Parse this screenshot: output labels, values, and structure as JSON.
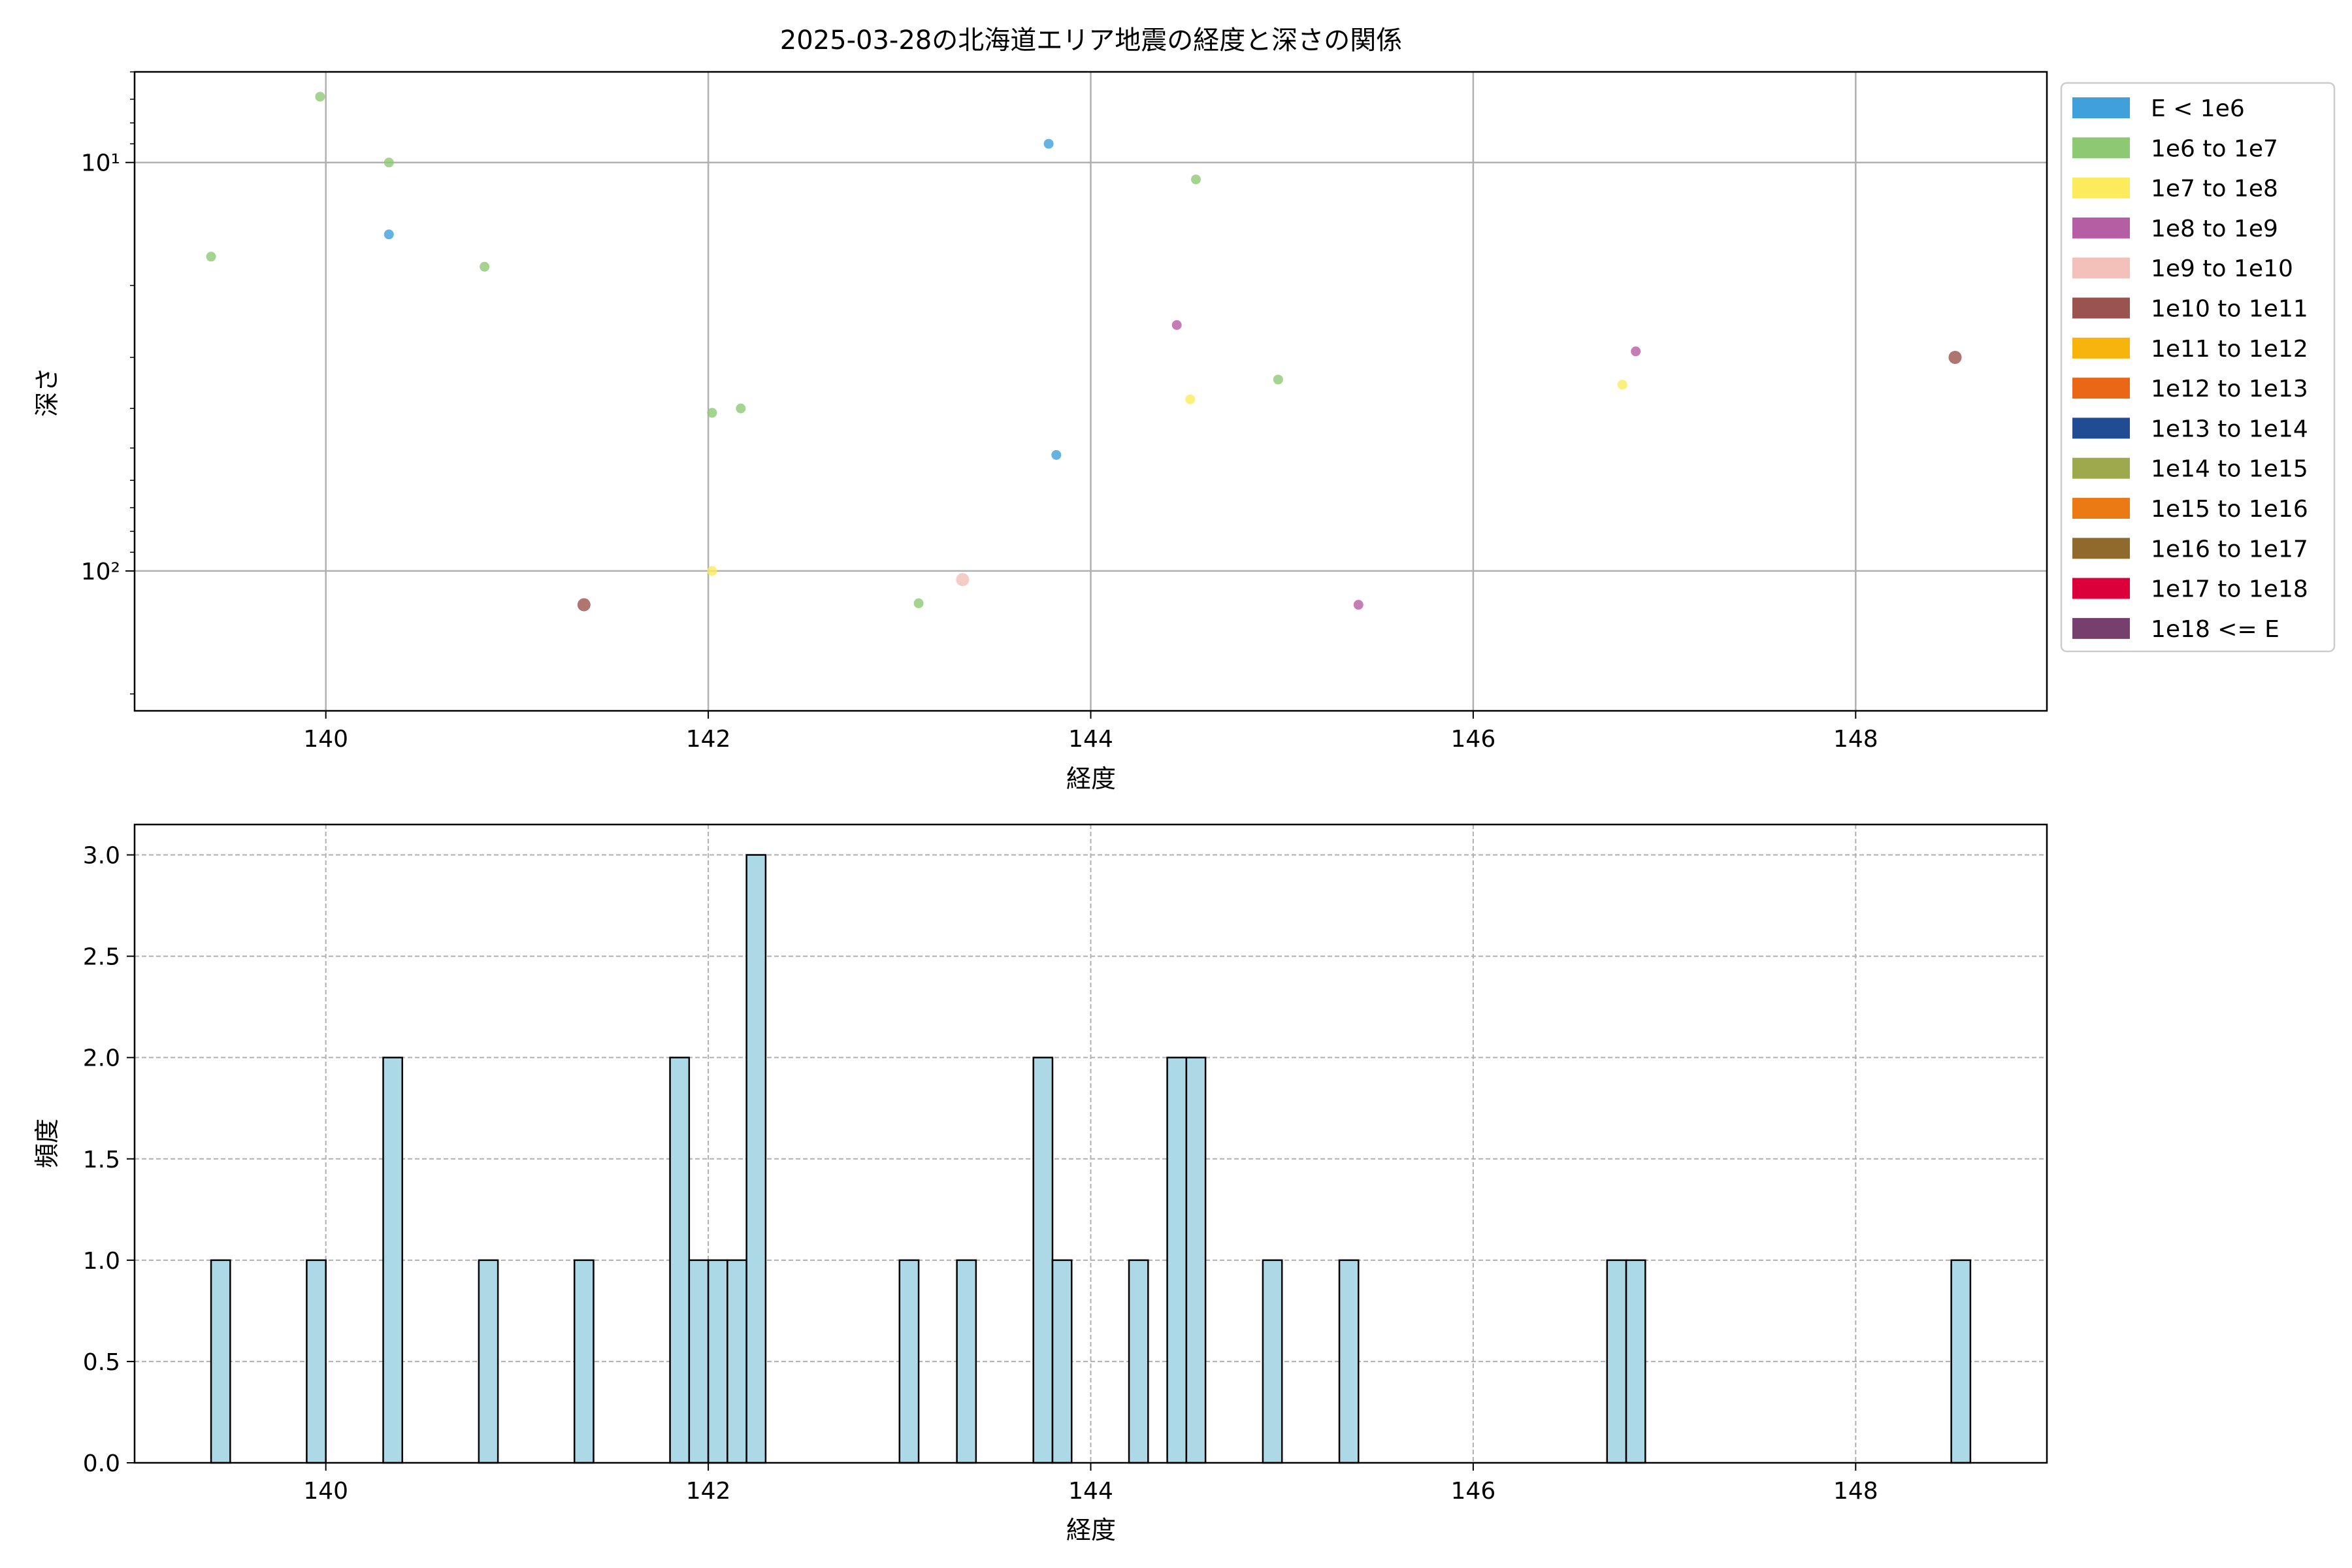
{
  "chart_data": [
    {
      "type": "scatter",
      "title": "2025-03-28の北海道エリア地震の経度と深さの関係",
      "xlabel": "経度",
      "ylabel": "深さ",
      "xlim": [
        139.0,
        149.0
      ],
      "ylim_inverted_log": [
        6,
        220
      ],
      "x_ticks": [
        "140",
        "142",
        "144",
        "146",
        "148"
      ],
      "x_tick_values": [
        140,
        142,
        144,
        146,
        148
      ],
      "y_ticks": [
        "10¹",
        "10²"
      ],
      "y_tick_values": [
        10,
        100
      ],
      "y_scale": "log (inverted)",
      "grid": true,
      "legend_position": "outside right",
      "legend": [
        {
          "label": "E < 1e6",
          "color": "#3fa0db"
        },
        {
          "label": "1e6 to 1e7",
          "color": "#8dc973"
        },
        {
          "label": "1e7 to 1e8",
          "color": "#fceb5c"
        },
        {
          "label": "1e8 to 1e9",
          "color": "#b65ea3"
        },
        {
          "label": "1e9 to 1e10",
          "color": "#f3c1b9"
        },
        {
          "label": "1e10 to 1e11",
          "color": "#9a534e"
        },
        {
          "label": "1e11 to 1e12",
          "color": "#f6b40d"
        },
        {
          "label": "1e12 to 1e13",
          "color": "#ea6717"
        },
        {
          "label": "1e13 to 1e14",
          "color": "#1f4c93"
        },
        {
          "label": "1e14 to 1e15",
          "color": "#9ea94d"
        },
        {
          "label": "1e15 to 1e16",
          "color": "#ec7a14"
        },
        {
          "label": "1e16 to 1e17",
          "color": "#8f6a2c"
        },
        {
          "label": "1e17 to 1e18",
          "color": "#db0039"
        },
        {
          "label": "1e18 <= E",
          "color": "#773f6d"
        }
      ],
      "points": [
        {
          "x": 139.4,
          "y": 17.0,
          "cls": 1
        },
        {
          "x": 139.97,
          "y": 6.9,
          "cls": 1
        },
        {
          "x": 140.33,
          "y": 10.0,
          "cls": 1
        },
        {
          "x": 140.33,
          "y": 15.0,
          "cls": 0
        },
        {
          "x": 140.83,
          "y": 18.0,
          "cls": 1
        },
        {
          "x": 141.35,
          "y": 121.0,
          "cls": 5
        },
        {
          "x": 142.02,
          "y": 41.0,
          "cls": 1
        },
        {
          "x": 142.17,
          "y": 40.0,
          "cls": 1
        },
        {
          "x": 142.02,
          "y": 100.0,
          "cls": 2
        },
        {
          "x": 143.1,
          "y": 120.0,
          "cls": 1
        },
        {
          "x": 143.33,
          "y": 105.0,
          "cls": 4
        },
        {
          "x": 143.78,
          "y": 9.0,
          "cls": 0
        },
        {
          "x": 143.82,
          "y": 52.0,
          "cls": 0
        },
        {
          "x": 144.45,
          "y": 25.0,
          "cls": 3
        },
        {
          "x": 144.52,
          "y": 38.0,
          "cls": 2
        },
        {
          "x": 144.55,
          "y": 11.0,
          "cls": 1
        },
        {
          "x": 144.98,
          "y": 34.0,
          "cls": 1
        },
        {
          "x": 145.4,
          "y": 121.0,
          "cls": 3
        },
        {
          "x": 146.78,
          "y": 35.0,
          "cls": 2
        },
        {
          "x": 146.85,
          "y": 29.0,
          "cls": 3
        },
        {
          "x": 148.52,
          "y": 30.0,
          "cls": 5
        }
      ]
    },
    {
      "type": "bar",
      "title": "",
      "xlabel": "経度",
      "ylabel": "頻度",
      "xlim": [
        139.0,
        149.0
      ],
      "ylim": [
        0,
        3.15
      ],
      "x_ticks": [
        "140",
        "142",
        "144",
        "146",
        "148"
      ],
      "x_tick_values": [
        140,
        142,
        144,
        146,
        148
      ],
      "y_ticks": [
        "0.0",
        "0.5",
        "1.0",
        "1.5",
        "2.0",
        "2.5",
        "3.0"
      ],
      "y_tick_values": [
        0,
        0.5,
        1.0,
        1.5,
        2.0,
        2.5,
        3.0
      ],
      "grid": true,
      "bar_color": "#add8e6",
      "bin_width": 0.1,
      "bins": [
        {
          "x": 139.45,
          "value": 1
        },
        {
          "x": 139.95,
          "value": 1
        },
        {
          "x": 140.35,
          "value": 2
        },
        {
          "x": 140.85,
          "value": 1
        },
        {
          "x": 141.35,
          "value": 1
        },
        {
          "x": 141.85,
          "value": 2
        },
        {
          "x": 141.95,
          "value": 1
        },
        {
          "x": 142.05,
          "value": 1
        },
        {
          "x": 142.15,
          "value": 1
        },
        {
          "x": 142.25,
          "value": 3
        },
        {
          "x": 143.05,
          "value": 1
        },
        {
          "x": 143.35,
          "value": 1
        },
        {
          "x": 143.75,
          "value": 2
        },
        {
          "x": 143.85,
          "value": 1
        },
        {
          "x": 144.25,
          "value": 1
        },
        {
          "x": 144.45,
          "value": 2
        },
        {
          "x": 144.55,
          "value": 2
        },
        {
          "x": 144.95,
          "value": 1
        },
        {
          "x": 145.35,
          "value": 1
        },
        {
          "x": 146.75,
          "value": 1
        },
        {
          "x": 146.85,
          "value": 1
        },
        {
          "x": 148.55,
          "value": 1
        }
      ]
    }
  ]
}
